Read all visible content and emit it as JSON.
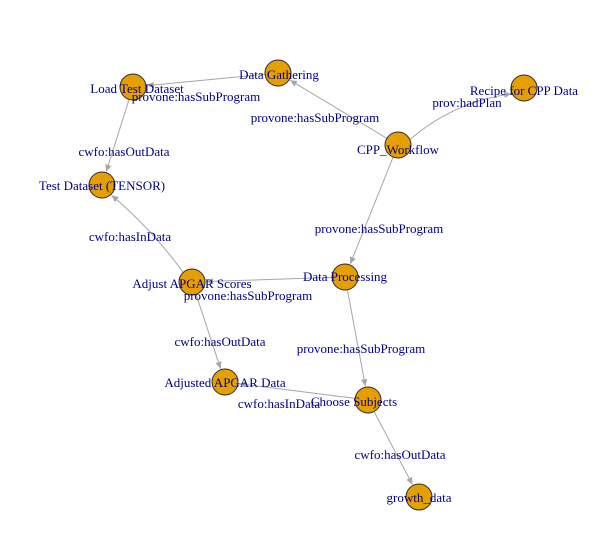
{
  "graph": {
    "colors": {
      "node_fill": "#e69f00",
      "node_stroke": "#2b2b2b",
      "edge": "#a6a6a6",
      "label": "#00008b",
      "background": "#ffffff"
    },
    "nodes": [
      {
        "id": "workflow",
        "label": "CPP_Workflow"
      },
      {
        "id": "recipe",
        "label": "Recipe for CPP Data"
      },
      {
        "id": "gathering",
        "label": "Data Gathering"
      },
      {
        "id": "processing",
        "label": "Data Processing"
      },
      {
        "id": "load",
        "label": "Load Test Dataset"
      },
      {
        "id": "testdata",
        "label": "Test Dataset (TENSOR)"
      },
      {
        "id": "apgar",
        "label": "Adjust APGAR Scores"
      },
      {
        "id": "adjusted",
        "label": "Adjusted APGAR Data"
      },
      {
        "id": "choose",
        "label": "Choose Subjects"
      },
      {
        "id": "growth",
        "label": "growth_data"
      }
    ],
    "edges": [
      {
        "from": "workflow",
        "to": "recipe",
        "label": "prov:hadPlan"
      },
      {
        "from": "workflow",
        "to": "gathering",
        "label": "provone:hasSubProgram"
      },
      {
        "from": "workflow",
        "to": "processing",
        "label": "provone:hasSubProgram"
      },
      {
        "from": "gathering",
        "to": "load",
        "label": "provone:hasSubProgram"
      },
      {
        "from": "load",
        "to": "testdata",
        "label": "cwfo:hasOutData"
      },
      {
        "from": "apgar",
        "to": "testdata",
        "label": "cwfo:hasInData"
      },
      {
        "from": "processing",
        "to": "apgar",
        "label": "provone:hasSubProgram"
      },
      {
        "from": "apgar",
        "to": "adjusted",
        "label": "cwfo:hasOutData"
      },
      {
        "from": "processing",
        "to": "choose",
        "label": "provone:hasSubProgram"
      },
      {
        "from": "choose",
        "to": "adjusted",
        "label": "cwfo:hasInData"
      },
      {
        "from": "choose",
        "to": "growth",
        "label": "cwfo:hasOutData"
      }
    ]
  }
}
